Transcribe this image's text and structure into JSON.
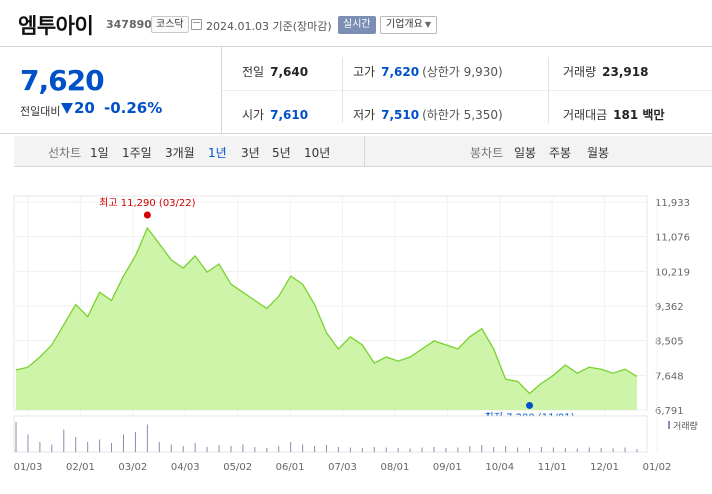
{
  "header": {
    "name": "엠투아이",
    "code": "347890",
    "market": "코스닥",
    "date": "2024.01.03  기준(장마감)",
    "live_badge": "실시간",
    "overview_button": "기업개요"
  },
  "summary": {
    "price": "7,620",
    "change_label": "전일대비",
    "change_value": "20",
    "change_rate": "-0.26%",
    "prev_close_label": "전일",
    "prev_close": "7,640",
    "open_label": "시가",
    "open": "7,610",
    "high_label": "고가",
    "high": "7,620",
    "upper_limit": "(상한가 9,930)",
    "low_label": "저가",
    "low": "7,510",
    "lower_limit": "(하한가 5,350)",
    "volume_label": "거래량",
    "volume": "23,918",
    "amount_label": "거래대금",
    "amount": "181 백만"
  },
  "period_bar": {
    "line_label": "선차트",
    "line_items": [
      "1일",
      "1주일",
      "3개월",
      "1년",
      "3년",
      "5년",
      "10년"
    ],
    "active": "1년",
    "candle_label": "봉차트",
    "candle_items": [
      "일봉",
      "주봉",
      "월봉"
    ]
  },
  "colors": {
    "blue": "#0050c8",
    "red": "#d40000",
    "area_fill": "#c6f29a",
    "line": "#79d231",
    "volume": "#8a8ab2"
  },
  "chart_data": {
    "type": "area",
    "y_ticks": [
      "11,933",
      "11,076",
      "10,219",
      "9,362",
      "8,505",
      "7,648",
      "6,791"
    ],
    "ylim": [
      6791,
      11933
    ],
    "x_ticks": [
      "01/03",
      "02/01",
      "03/02",
      "04/03",
      "05/02",
      "06/01",
      "07/03",
      "08/01",
      "09/01",
      "10/04",
      "11/01",
      "12/01",
      "01/02"
    ],
    "max_label": "최고 11,290 (03/22)",
    "min_label": "최저 7,200 (11/01)",
    "volume_label": "거래량",
    "series": [
      {
        "name": "종가",
        "x": [
          "01/03",
          "01/10",
          "01/17",
          "01/24",
          "01/31",
          "02/07",
          "02/14",
          "02/21",
          "02/28",
          "03/07",
          "03/14",
          "03/22",
          "03/29",
          "04/05",
          "04/12",
          "04/19",
          "04/26",
          "05/03",
          "05/10",
          "05/17",
          "05/24",
          "05/31",
          "06/07",
          "06/14",
          "06/21",
          "06/28",
          "07/05",
          "07/12",
          "07/19",
          "07/26",
          "08/02",
          "08/09",
          "08/16",
          "08/23",
          "08/30",
          "09/06",
          "09/13",
          "09/20",
          "09/27",
          "10/04",
          "10/11",
          "10/18",
          "10/25",
          "11/01",
          "11/08",
          "11/15",
          "11/22",
          "11/29",
          "12/06",
          "12/13",
          "12/20",
          "12/27",
          "01/03"
        ],
        "values": [
          7780,
          7850,
          8100,
          8400,
          8900,
          9400,
          9100,
          9700,
          9500,
          10100,
          10600,
          11290,
          10900,
          10500,
          10300,
          10600,
          10200,
          10400,
          9900,
          9700,
          9500,
          9300,
          9600,
          10100,
          9900,
          9400,
          8700,
          8300,
          8600,
          8400,
          7950,
          8100,
          8000,
          8100,
          8300,
          8500,
          8400,
          8300,
          8600,
          8800,
          8300,
          7550,
          7500,
          7200,
          7450,
          7650,
          7900,
          7700,
          7850,
          7800,
          7700,
          7800,
          7620
        ]
      }
    ],
    "volume_values": [
      60,
      35,
      20,
      15,
      45,
      30,
      20,
      25,
      18,
      35,
      40,
      55,
      20,
      15,
      12,
      18,
      10,
      14,
      12,
      15,
      10,
      8,
      12,
      20,
      15,
      12,
      14,
      10,
      9,
      8,
      10,
      9,
      8,
      7,
      9,
      10,
      8,
      9,
      12,
      14,
      10,
      12,
      9,
      8,
      10,
      9,
      8,
      7,
      9,
      8,
      7,
      9,
      6
    ]
  }
}
